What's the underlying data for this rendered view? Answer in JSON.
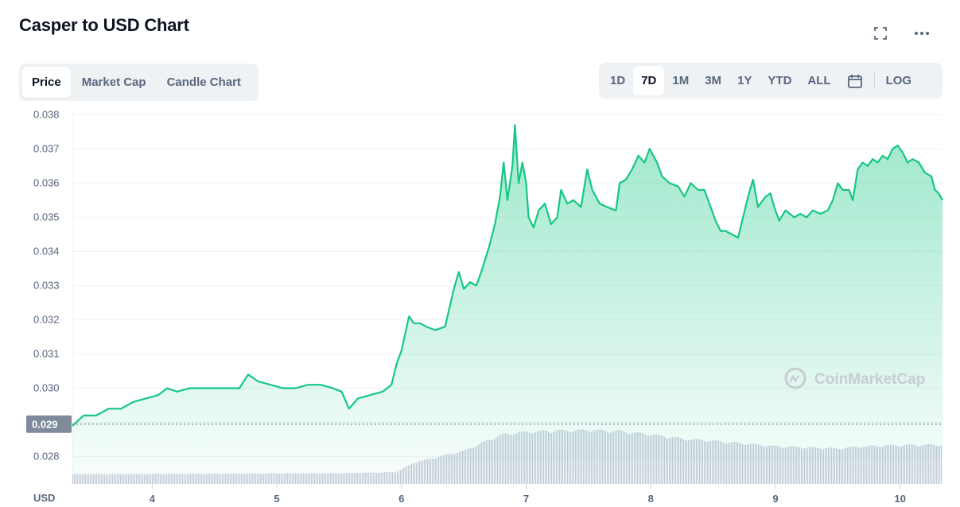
{
  "header": {
    "title": "Casper to USD Chart"
  },
  "tabs_left": [
    {
      "label": "Price",
      "active": true
    },
    {
      "label": "Market Cap",
      "active": false
    },
    {
      "label": "Candle Chart",
      "active": false
    }
  ],
  "tabs_right": [
    {
      "label": "1D",
      "active": false
    },
    {
      "label": "7D",
      "active": true
    },
    {
      "label": "1M",
      "active": false
    },
    {
      "label": "3M",
      "active": false
    },
    {
      "label": "1Y",
      "active": false
    },
    {
      "label": "YTD",
      "active": false
    },
    {
      "label": "ALL",
      "active": false
    }
  ],
  "log_label": "LOG",
  "icons": {
    "fullscreen": "fullscreen-icon",
    "more": "more-icon",
    "calendar": "calendar-icon"
  },
  "watermark": "CoinMarketCap",
  "colors": {
    "line": "#16c784",
    "accent": "#16c784",
    "volume": "#c8ccdb",
    "price_tag_bg": "#808a9d"
  },
  "chart_data": {
    "type": "area",
    "title": "Casper to USD Chart",
    "currency_label": "USD",
    "ylim": [
      0.0272,
      0.0381
    ],
    "y_ticks": [
      "0.038",
      "0.037",
      "0.036",
      "0.035",
      "0.034",
      "0.033",
      "0.032",
      "0.031",
      "0.030",
      "0.029",
      "0.028"
    ],
    "y_tick_values": [
      0.038,
      0.037,
      0.036,
      0.035,
      0.034,
      0.033,
      0.032,
      0.031,
      0.03,
      0.029,
      0.028
    ],
    "x_ticks": [
      "4",
      "5",
      "6",
      "7",
      "8",
      "9",
      "10"
    ],
    "x_tick_values": [
      4,
      5,
      6,
      7,
      8,
      9,
      10
    ],
    "xlim": [
      3.36,
      10.34
    ],
    "current_price_label": "0.029",
    "current_price": 0.02895,
    "grid": true,
    "series": [
      {
        "values_points": [
          [
            3.36,
            0.0289
          ],
          [
            3.45,
            0.0292
          ],
          [
            3.55,
            0.0292
          ],
          [
            3.65,
            0.0294
          ],
          [
            3.75,
            0.0294
          ],
          [
            3.85,
            0.0296
          ],
          [
            3.95,
            0.0297
          ],
          [
            4.05,
            0.0298
          ],
          [
            4.12,
            0.03
          ],
          [
            4.2,
            0.0299
          ],
          [
            4.3,
            0.03
          ],
          [
            4.4,
            0.03
          ],
          [
            4.5,
            0.03
          ],
          [
            4.6,
            0.03
          ],
          [
            4.7,
            0.03
          ],
          [
            4.77,
            0.0304
          ],
          [
            4.85,
            0.0302
          ],
          [
            4.95,
            0.0301
          ],
          [
            5.05,
            0.03
          ],
          [
            5.15,
            0.03
          ],
          [
            5.25,
            0.0301
          ],
          [
            5.35,
            0.0301
          ],
          [
            5.45,
            0.03
          ],
          [
            5.52,
            0.0299
          ],
          [
            5.58,
            0.0294
          ],
          [
            5.65,
            0.0297
          ],
          [
            5.75,
            0.0298
          ],
          [
            5.85,
            0.0299
          ],
          [
            5.92,
            0.0301
          ],
          [
            5.96,
            0.0307
          ],
          [
            6.0,
            0.0311
          ],
          [
            6.03,
            0.0316
          ],
          [
            6.06,
            0.0321
          ],
          [
            6.1,
            0.0319
          ],
          [
            6.15,
            0.0319
          ],
          [
            6.2,
            0.0318
          ],
          [
            6.27,
            0.0317
          ],
          [
            6.35,
            0.0318
          ],
          [
            6.42,
            0.0329
          ],
          [
            6.46,
            0.0334
          ],
          [
            6.5,
            0.0329
          ],
          [
            6.55,
            0.0331
          ],
          [
            6.6,
            0.033
          ],
          [
            6.64,
            0.0334
          ],
          [
            6.7,
            0.0341
          ],
          [
            6.75,
            0.0348
          ],
          [
            6.79,
            0.0356
          ],
          [
            6.82,
            0.0366
          ],
          [
            6.85,
            0.0355
          ],
          [
            6.89,
            0.0365
          ],
          [
            6.91,
            0.0377
          ],
          [
            6.94,
            0.036
          ],
          [
            6.97,
            0.0366
          ],
          [
            7.0,
            0.036
          ],
          [
            7.02,
            0.035
          ],
          [
            7.06,
            0.0347
          ],
          [
            7.1,
            0.0352
          ],
          [
            7.15,
            0.0354
          ],
          [
            7.2,
            0.0348
          ],
          [
            7.25,
            0.035
          ],
          [
            7.28,
            0.0358
          ],
          [
            7.33,
            0.0354
          ],
          [
            7.38,
            0.0355
          ],
          [
            7.44,
            0.0353
          ],
          [
            7.49,
            0.0364
          ],
          [
            7.53,
            0.0358
          ],
          [
            7.59,
            0.0354
          ],
          [
            7.65,
            0.0353
          ],
          [
            7.72,
            0.0352
          ],
          [
            7.75,
            0.036
          ],
          [
            7.8,
            0.0361
          ],
          [
            7.85,
            0.0364
          ],
          [
            7.9,
            0.0368
          ],
          [
            7.95,
            0.0366
          ],
          [
            7.99,
            0.037
          ],
          [
            8.05,
            0.0366
          ],
          [
            8.09,
            0.0362
          ],
          [
            8.15,
            0.036
          ],
          [
            8.22,
            0.0359
          ],
          [
            8.27,
            0.0356
          ],
          [
            8.32,
            0.036
          ],
          [
            8.38,
            0.0358
          ],
          [
            8.43,
            0.0358
          ],
          [
            8.48,
            0.0353
          ],
          [
            8.52,
            0.0349
          ],
          [
            8.56,
            0.0346
          ],
          [
            8.6,
            0.0346
          ],
          [
            8.65,
            0.0345
          ],
          [
            8.7,
            0.0344
          ],
          [
            8.74,
            0.035
          ],
          [
            8.78,
            0.0356
          ],
          [
            8.82,
            0.0361
          ],
          [
            8.86,
            0.0353
          ],
          [
            8.92,
            0.0356
          ],
          [
            8.96,
            0.0357
          ],
          [
            8.99,
            0.0353
          ],
          [
            9.03,
            0.0349
          ],
          [
            9.08,
            0.0352
          ],
          [
            9.15,
            0.035
          ],
          [
            9.2,
            0.0351
          ],
          [
            9.25,
            0.035
          ],
          [
            9.3,
            0.0352
          ],
          [
            9.36,
            0.0351
          ],
          [
            9.42,
            0.0352
          ],
          [
            9.46,
            0.0355
          ],
          [
            9.5,
            0.036
          ],
          [
            9.54,
            0.0358
          ],
          [
            9.59,
            0.0358
          ],
          [
            9.62,
            0.0355
          ],
          [
            9.66,
            0.0364
          ],
          [
            9.7,
            0.0366
          ],
          [
            9.74,
            0.0365
          ],
          [
            9.78,
            0.0367
          ],
          [
            9.82,
            0.0366
          ],
          [
            9.86,
            0.0368
          ],
          [
            9.9,
            0.0367
          ],
          [
            9.94,
            0.037
          ],
          [
            9.98,
            0.0371
          ],
          [
            10.02,
            0.0369
          ],
          [
            10.06,
            0.0366
          ],
          [
            10.1,
            0.0367
          ],
          [
            10.15,
            0.0366
          ],
          [
            10.2,
            0.0363
          ],
          [
            10.25,
            0.0362
          ],
          [
            10.28,
            0.0358
          ],
          [
            10.31,
            0.0357
          ],
          [
            10.34,
            0.0355
          ]
        ]
      }
    ],
    "volume_points": [
      [
        3.36,
        0.18
      ],
      [
        5.5,
        0.2
      ],
      [
        5.95,
        0.22
      ],
      [
        6.1,
        0.4
      ],
      [
        6.5,
        0.62
      ],
      [
        6.8,
        0.92
      ],
      [
        7.0,
        0.97
      ],
      [
        7.25,
        0.99
      ],
      [
        7.5,
        1.0
      ],
      [
        7.75,
        0.98
      ],
      [
        8.0,
        0.92
      ],
      [
        8.25,
        0.84
      ],
      [
        8.5,
        0.8
      ],
      [
        8.8,
        0.74
      ],
      [
        9.0,
        0.7
      ],
      [
        9.25,
        0.68
      ],
      [
        9.5,
        0.66
      ],
      [
        9.7,
        0.7
      ],
      [
        10.0,
        0.72
      ],
      [
        10.34,
        0.73
      ]
    ]
  }
}
